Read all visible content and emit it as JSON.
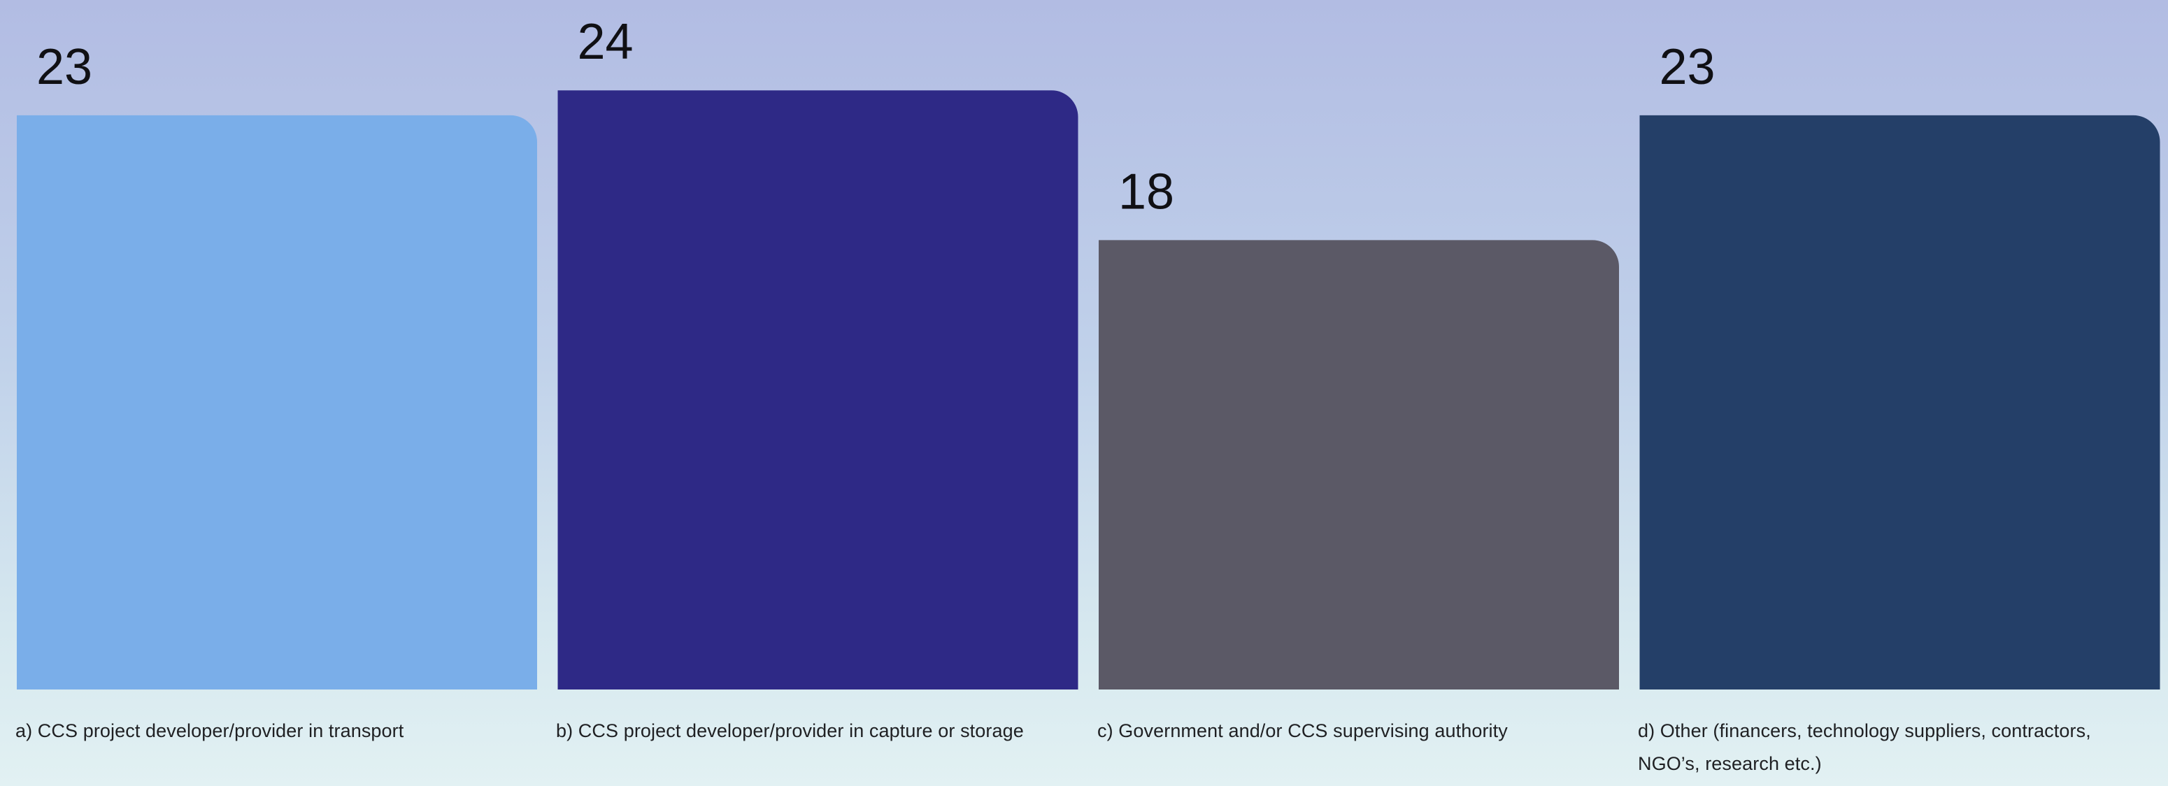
{
  "chart_data": {
    "type": "bar",
    "categories": [
      "a) CCS project developer/provider in transport",
      "b) CCS project developer/provider in capture or storage",
      "c) Government and/or CCS supervising authority",
      "d) Other (financers, technology suppliers, contractors, NGO’s, research etc.)"
    ],
    "values": [
      23,
      24,
      18,
      23
    ],
    "colors": [
      "#7aaee9",
      "#2e2986",
      "#5b5966",
      "#243f68"
    ],
    "ylim": [
      0,
      24
    ],
    "grid": false,
    "legend": false
  }
}
